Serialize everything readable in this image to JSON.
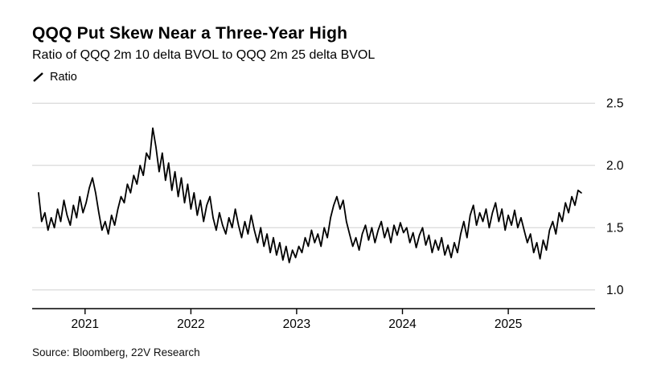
{
  "header": {
    "title": "QQQ Put Skew Near a Three-Year High",
    "subtitle": "Ratio of QQQ 2m 10 delta BVOL to QQQ 2m 25 delta BVOL"
  },
  "legend": {
    "label": "Ratio",
    "marker_color": "#000000"
  },
  "footer": {
    "source": "Source: Bloomberg, 22V Research"
  },
  "colors": {
    "line": "#000000",
    "gridline": "#d0d0d0",
    "axis": "#000000",
    "tick_text": "#000000",
    "background": "#ffffff"
  },
  "chart_data": {
    "type": "line",
    "title": "QQQ Put Skew Near a Three-Year High",
    "subtitle": "Ratio of QQQ 2m 10 delta BVOL to QQQ 2m 25 delta BVOL",
    "series_name": "Ratio",
    "xlabel": "",
    "ylabel": "Ratio",
    "x_range": [
      2020.5,
      2025.82
    ],
    "y_range": [
      0.85,
      2.58
    ],
    "x_ticks": [
      2021,
      2022,
      2023,
      2024,
      2025
    ],
    "x_tick_labels": [
      "2021",
      "2022",
      "2023",
      "2024",
      "2025"
    ],
    "y_ticks": [
      1.0,
      1.5,
      2.0,
      2.5
    ],
    "y_tick_labels": [
      "1.0",
      "1.5",
      "2.0",
      "2.5"
    ],
    "grid": "horizontal",
    "legend_position": "top-left",
    "x_start": 2020.56,
    "x_step": 0.03,
    "values": [
      1.78,
      1.55,
      1.62,
      1.48,
      1.58,
      1.5,
      1.65,
      1.55,
      1.72,
      1.6,
      1.52,
      1.68,
      1.58,
      1.75,
      1.62,
      1.7,
      1.82,
      1.9,
      1.78,
      1.62,
      1.48,
      1.55,
      1.45,
      1.6,
      1.52,
      1.65,
      1.75,
      1.7,
      1.85,
      1.78,
      1.92,
      1.85,
      2.0,
      1.92,
      2.1,
      2.05,
      2.3,
      2.15,
      1.95,
      2.1,
      1.88,
      2.02,
      1.8,
      1.95,
      1.75,
      1.9,
      1.7,
      1.85,
      1.65,
      1.78,
      1.6,
      1.72,
      1.55,
      1.68,
      1.75,
      1.58,
      1.48,
      1.62,
      1.52,
      1.45,
      1.58,
      1.5,
      1.65,
      1.52,
      1.42,
      1.55,
      1.45,
      1.6,
      1.48,
      1.38,
      1.5,
      1.35,
      1.45,
      1.3,
      1.42,
      1.28,
      1.38,
      1.24,
      1.35,
      1.22,
      1.32,
      1.26,
      1.35,
      1.3,
      1.42,
      1.35,
      1.48,
      1.38,
      1.45,
      1.35,
      1.5,
      1.42,
      1.58,
      1.68,
      1.75,
      1.65,
      1.72,
      1.55,
      1.45,
      1.35,
      1.42,
      1.32,
      1.45,
      1.52,
      1.4,
      1.5,
      1.38,
      1.48,
      1.55,
      1.42,
      1.5,
      1.38,
      1.52,
      1.44,
      1.54,
      1.46,
      1.5,
      1.38,
      1.46,
      1.34,
      1.44,
      1.5,
      1.36,
      1.44,
      1.3,
      1.4,
      1.32,
      1.42,
      1.28,
      1.36,
      1.26,
      1.38,
      1.3,
      1.45,
      1.55,
      1.42,
      1.6,
      1.68,
      1.52,
      1.62,
      1.55,
      1.65,
      1.5,
      1.62,
      1.7,
      1.55,
      1.65,
      1.48,
      1.6,
      1.52,
      1.64,
      1.5,
      1.58,
      1.48,
      1.38,
      1.45,
      1.3,
      1.38,
      1.25,
      1.4,
      1.32,
      1.48,
      1.55,
      1.45,
      1.62,
      1.55,
      1.7,
      1.62,
      1.75,
      1.68,
      1.8,
      1.78
    ]
  }
}
